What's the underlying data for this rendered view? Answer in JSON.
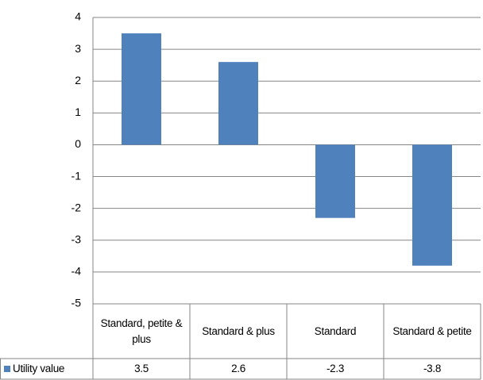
{
  "chart_data": {
    "type": "bar",
    "categories": [
      "Standard, petite & plus",
      "Standard & plus",
      "Standard",
      "Standard & petite"
    ],
    "series": [
      {
        "name": "Utility value",
        "color": "#4f81bd",
        "values": [
          3.5,
          2.6,
          -2.3,
          -3.8
        ]
      }
    ],
    "ylim": [
      -5,
      4
    ],
    "yticks": [
      4,
      3,
      2,
      1,
      0,
      -1,
      -2,
      -3,
      -4,
      -5
    ],
    "grid": true
  }
}
